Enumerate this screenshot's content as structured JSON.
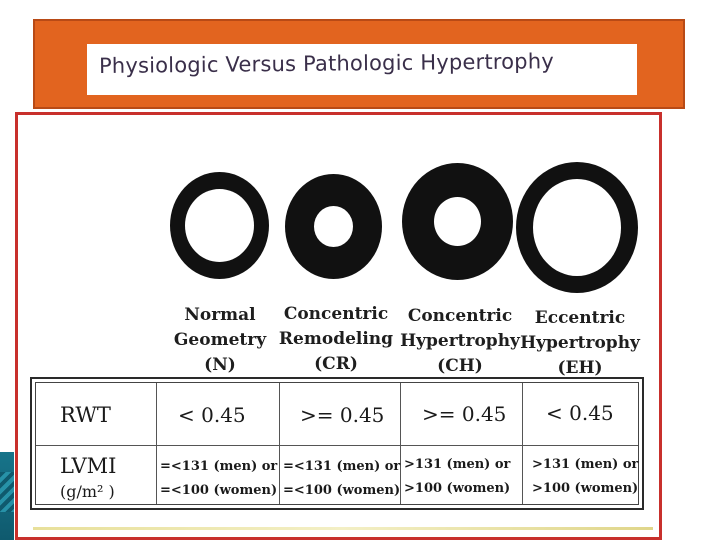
{
  "title": "Physiologic Versus Pathologic Hypertrophy",
  "geometries": [
    {
      "name_lines": [
        "Normal",
        "Geometry",
        "(N)"
      ]
    },
    {
      "name_lines": [
        "Concentric",
        "Remodeling",
        "(CR)"
      ]
    },
    {
      "name_lines": [
        "Concentric",
        "Hypertrophy",
        "(CH)"
      ]
    },
    {
      "name_lines": [
        "Eccentric",
        "Hypertrophy",
        "(EH)"
      ]
    }
  ],
  "table": {
    "rwt_label": "RWT",
    "lvmi_label_line1": "LVMI",
    "lvmi_label_line2": "(g/m² )",
    "rwt_values": [
      "< 0.45",
      ">= 0.45",
      ">= 0.45",
      "< 0.45"
    ],
    "lvmi_values": [
      {
        "men": "=<131 (men) or",
        "women": "=<100 (women)"
      },
      {
        "men": "=<131 (men) or",
        "women": "=<100 (women)"
      },
      {
        "men": ">131 (men) or",
        "women": ">100 (women)"
      },
      {
        "men": ">131 (men) or",
        "women": ">100 (women)"
      }
    ]
  },
  "colors": {
    "header_orange": "#e2641f",
    "frame_red": "#c8302c",
    "ring_black": "#111111"
  }
}
